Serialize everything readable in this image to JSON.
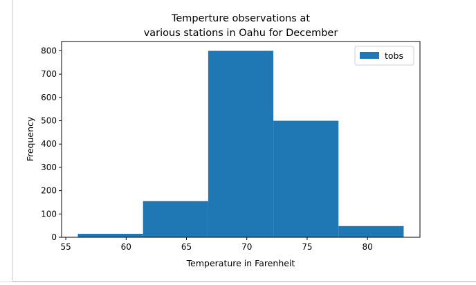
{
  "chart_data": {
    "type": "bar",
    "title_lines": [
      "Temperture observations at",
      "various stations in Oahu for December"
    ],
    "xlabel": "Temperature in Farenheit",
    "ylabel": "Frequency",
    "xlim": [
      54.65,
      84.35
    ],
    "ylim": [
      0,
      840
    ],
    "xticks": [
      55,
      60,
      65,
      70,
      75,
      80
    ],
    "yticks": [
      0,
      100,
      200,
      300,
      400,
      500,
      600,
      700,
      800
    ],
    "bar_color": "#1f77b4",
    "grid": false,
    "legend": {
      "placement": "top-right",
      "entries": [
        "tobs"
      ]
    },
    "series": [
      {
        "name": "tobs",
        "bins": [
          {
            "x0": 56.0,
            "x1": 61.4,
            "value": 15
          },
          {
            "x0": 61.4,
            "x1": 66.8,
            "value": 155
          },
          {
            "x0": 66.8,
            "x1": 72.2,
            "value": 800
          },
          {
            "x0": 72.2,
            "x1": 77.6,
            "value": 500
          },
          {
            "x0": 77.6,
            "x1": 83.0,
            "value": 48
          }
        ]
      }
    ]
  }
}
